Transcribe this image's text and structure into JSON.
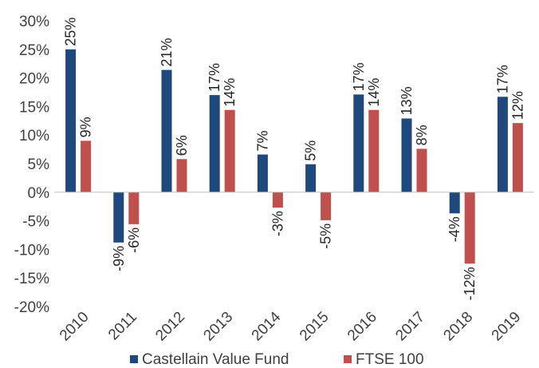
{
  "chart_data": {
    "type": "bar",
    "categories": [
      "2010",
      "2011",
      "2012",
      "2013",
      "2014",
      "2015",
      "2016",
      "2017",
      "2018",
      "2019"
    ],
    "series": [
      {
        "name": "Castellain Value Fund",
        "color": "#1f497d",
        "values": [
          25,
          -8.8,
          21.4,
          17,
          6.6,
          4.9,
          17.1,
          12.9,
          -3.7,
          16.7
        ],
        "labels": [
          "25%",
          "-9%",
          "21%",
          "17%",
          "7%",
          "5%",
          "17%",
          "13%",
          "-4%",
          "17%"
        ]
      },
      {
        "name": "FTSE 100",
        "color": "#c0504d",
        "values": [
          9,
          -5.6,
          5.8,
          14.4,
          -2.7,
          -4.9,
          14.4,
          7.6,
          -12.5,
          12.1
        ],
        "labels": [
          "9%",
          "-6%",
          "6%",
          "14%",
          "-3%",
          "-5%",
          "14%",
          "8%",
          "-12%",
          "12%"
        ]
      }
    ],
    "ylim": [
      -20,
      30
    ],
    "yticks": [
      30,
      25,
      20,
      15,
      10,
      5,
      0,
      -5,
      -10,
      -15,
      -20
    ],
    "ytick_labels": [
      "30%",
      "25%",
      "20%",
      "15%",
      "10%",
      "5%",
      "0%",
      "-5%",
      "-10%",
      "-15%",
      "-20%"
    ],
    "title": "",
    "xlabel": "",
    "ylabel": "",
    "grid": false,
    "legend": "bottom"
  }
}
